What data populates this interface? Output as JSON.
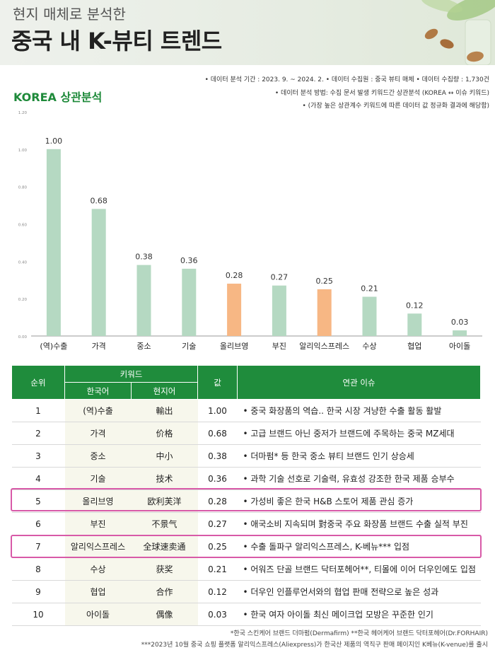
{
  "header": {
    "subtitle": "현지 매체로 분석한",
    "title": "중국 내 K-뷰티 트렌드"
  },
  "meta": {
    "line1": "• 데이터 분석 기간 : 2023. 9. ~ 2024. 2.   • 데이터 수집원 : 중국 뷰티 매체   • 데이터 수집량 : 1,730건",
    "line2": "• 데이터 분석 방법: 수집 문서 발생 키워드간 상관분석 (KOREA ↔ 이슈 키워드)",
    "line3": "• (가장 높은 상관계수 키워드에 따른 데이터 값 정규화 결과에 해당함)"
  },
  "colors": {
    "bar_default": "#b5d9c2",
    "bar_highlight": "#f7b784",
    "brand_green": "#1f8c3c",
    "highlight_border": "#d85aa8"
  },
  "chart_data": {
    "type": "bar",
    "title": "KOREA 상관분석",
    "categories": [
      "(역)수출",
      "가격",
      "중소",
      "기술",
      "올리브영",
      "부진",
      "알리익스프레스",
      "수상",
      "협업",
      "아이돌"
    ],
    "values": [
      1.0,
      0.68,
      0.38,
      0.36,
      0.28,
      0.27,
      0.25,
      0.21,
      0.12,
      0.03
    ],
    "value_labels": [
      "1.00",
      "0.68",
      "0.38",
      "0.36",
      "0.28",
      "0.27",
      "0.25",
      "0.21",
      "0.12",
      "0.03"
    ],
    "highlighted": [
      "올리브영",
      "알리익스프레스"
    ],
    "ylim": [
      0,
      1.2
    ],
    "yticks": [
      "1.20",
      "1.00",
      "0.80",
      "0.60",
      "0.40",
      "0.20",
      "0.00"
    ],
    "grid": false
  },
  "table": {
    "headers": {
      "rank": "순위",
      "keyword": "키워드",
      "korean": "한국어",
      "local": "현지어",
      "value": "값",
      "issue": "연관 이슈"
    },
    "rows": [
      {
        "rank": "1",
        "ko": "(역)수출",
        "cn": "輸出",
        "val": "1.00",
        "issue": "• 중국 화장품의 역습.. 한국 시장 겨냥한 수출 활동 활발"
      },
      {
        "rank": "2",
        "ko": "가격",
        "cn": "价格",
        "val": "0.68",
        "issue": "• 고급 브랜드 아닌 중저가 브랜드에 주목하는 중국 MZ세대"
      },
      {
        "rank": "3",
        "ko": "중소",
        "cn": "中小",
        "val": "0.38",
        "issue": "• 더마펌* 등 한국 중소 뷰티 브랜드 인기 상승세"
      },
      {
        "rank": "4",
        "ko": "기술",
        "cn": "技术",
        "val": "0.36",
        "issue": "• 과학 기술 선호로 기술력, 유효성 강조한 한국 제품 승부수"
      },
      {
        "rank": "5",
        "ko": "올리브영",
        "cn": "欧利芙洋",
        "val": "0.28",
        "issue": "• 가성비 좋은 한국 H&B 스토어 제품 관심 증가"
      },
      {
        "rank": "6",
        "ko": "부진",
        "cn": "不景气",
        "val": "0.27",
        "issue": "• 애국소비 지속되며 對중국 주요 화장품 브랜드 수출 실적 부진"
      },
      {
        "rank": "7",
        "ko": "알리익스프레스",
        "cn": "全球速卖通",
        "val": "0.25",
        "issue": "• 수출 돌파구 알리익스프레스, K-베뉴*** 입점"
      },
      {
        "rank": "8",
        "ko": "수상",
        "cn": "获奖",
        "val": "0.21",
        "issue": "• 어워즈 단골 브랜드 닥터포헤어**, 티몰에 이어 더우인에도 입점"
      },
      {
        "rank": "9",
        "ko": "협업",
        "cn": "合作",
        "val": "0.12",
        "issue": "• 더우인 인플루언서와의 협업 판매 전략으로 높은 성과"
      },
      {
        "rank": "10",
        "ko": "아이돌",
        "cn": "偶像",
        "val": "0.03",
        "issue": "• 한국 여자 아이돌 최신 메이크업 모방은 꾸준한 인기"
      }
    ]
  },
  "notes": {
    "line1": "*한국 스킨케어 브랜드 더마펌(Dermafirm) **한국 헤어케어 브랜드 닥터포헤어(Dr.FORHAIR)",
    "line2": "***2023년 10월 중국 쇼핑 플랫폼 알리익스프레스(Aliexpress)가 한국산 제품의 역직구 판매 페이지인 K베뉴(K-venue)를 출시"
  }
}
